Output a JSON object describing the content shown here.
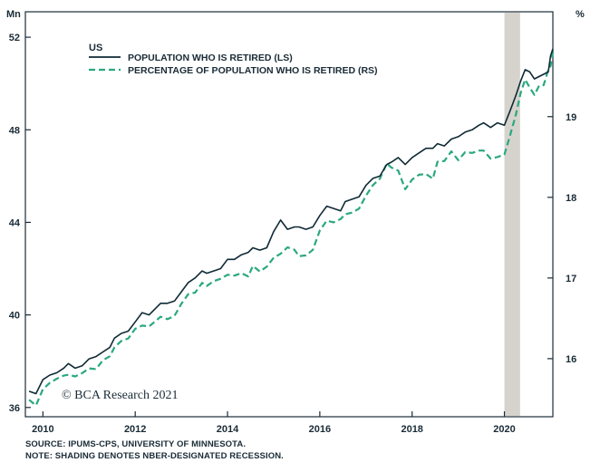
{
  "chart_data": {
    "type": "line",
    "title": "",
    "region_label": "US",
    "x_range": [
      2009.62,
      2021.05
    ],
    "x_ticks": [
      2010,
      2012,
      2014,
      2016,
      2018,
      2020
    ],
    "x_tick_labels": [
      "2010",
      "2012",
      "2014",
      "2016",
      "2018",
      "2020"
    ],
    "left_axis": {
      "unit": "Mn",
      "range": [
        35.6,
        53.1
      ],
      "ticks": [
        36,
        40,
        44,
        48,
        52
      ],
      "tick_labels": [
        "36",
        "40",
        "44",
        "48",
        "52"
      ]
    },
    "right_axis": {
      "unit": "%",
      "range": [
        15.28,
        20.3
      ],
      "ticks": [
        16,
        17,
        18,
        19
      ],
      "tick_labels": [
        "16",
        "17",
        "18",
        "19"
      ]
    },
    "shading": [
      {
        "label": "NBER recession",
        "start": 2020.0,
        "end": 2020.34
      }
    ],
    "series": [
      {
        "name": "POPULATION WHO IS RETIRED (LS)",
        "axis": "left",
        "style": "solid",
        "color": "#0f2a36",
        "points": [
          [
            2009.7,
            36.7
          ],
          [
            2009.85,
            36.6
          ],
          [
            2010.0,
            37.2
          ],
          [
            2010.15,
            37.4
          ],
          [
            2010.3,
            37.5
          ],
          [
            2010.45,
            37.7
          ],
          [
            2010.55,
            37.9
          ],
          [
            2010.7,
            37.7
          ],
          [
            2010.85,
            37.8
          ],
          [
            2011.0,
            38.1
          ],
          [
            2011.15,
            38.2
          ],
          [
            2011.3,
            38.4
          ],
          [
            2011.45,
            38.6
          ],
          [
            2011.55,
            39.0
          ],
          [
            2011.7,
            39.2
          ],
          [
            2011.85,
            39.3
          ],
          [
            2012.0,
            39.7
          ],
          [
            2012.15,
            40.1
          ],
          [
            2012.3,
            40.0
          ],
          [
            2012.45,
            40.3
          ],
          [
            2012.55,
            40.5
          ],
          [
            2012.7,
            40.5
          ],
          [
            2012.85,
            40.6
          ],
          [
            2013.0,
            41.0
          ],
          [
            2013.15,
            41.4
          ],
          [
            2013.3,
            41.6
          ],
          [
            2013.45,
            41.9
          ],
          [
            2013.55,
            41.8
          ],
          [
            2013.7,
            41.9
          ],
          [
            2013.85,
            42.0
          ],
          [
            2014.0,
            42.4
          ],
          [
            2014.15,
            42.4
          ],
          [
            2014.3,
            42.6
          ],
          [
            2014.45,
            42.7
          ],
          [
            2014.55,
            42.9
          ],
          [
            2014.7,
            42.8
          ],
          [
            2014.85,
            42.9
          ],
          [
            2015.0,
            43.6
          ],
          [
            2015.15,
            44.1
          ],
          [
            2015.3,
            43.7
          ],
          [
            2015.45,
            43.8
          ],
          [
            2015.55,
            43.8
          ],
          [
            2015.7,
            43.7
          ],
          [
            2015.85,
            43.8
          ],
          [
            2016.0,
            44.3
          ],
          [
            2016.15,
            44.7
          ],
          [
            2016.3,
            44.6
          ],
          [
            2016.45,
            44.5
          ],
          [
            2016.55,
            44.9
          ],
          [
            2016.7,
            45.0
          ],
          [
            2016.85,
            45.1
          ],
          [
            2017.0,
            45.6
          ],
          [
            2017.15,
            45.9
          ],
          [
            2017.3,
            46.0
          ],
          [
            2017.45,
            46.5
          ],
          [
            2017.55,
            46.6
          ],
          [
            2017.7,
            46.8
          ],
          [
            2017.85,
            46.5
          ],
          [
            2018.0,
            46.8
          ],
          [
            2018.15,
            47.0
          ],
          [
            2018.3,
            47.2
          ],
          [
            2018.45,
            47.2
          ],
          [
            2018.55,
            47.4
          ],
          [
            2018.7,
            47.3
          ],
          [
            2018.85,
            47.6
          ],
          [
            2019.0,
            47.7
          ],
          [
            2019.15,
            47.9
          ],
          [
            2019.3,
            48.0
          ],
          [
            2019.45,
            48.2
          ],
          [
            2019.55,
            48.3
          ],
          [
            2019.7,
            48.1
          ],
          [
            2019.85,
            48.3
          ],
          [
            2020.0,
            48.2
          ],
          [
            2020.12,
            48.8
          ],
          [
            2020.25,
            49.5
          ],
          [
            2020.35,
            50.1
          ],
          [
            2020.45,
            50.6
          ],
          [
            2020.55,
            50.5
          ],
          [
            2020.65,
            50.2
          ],
          [
            2020.75,
            50.3
          ],
          [
            2020.85,
            50.4
          ],
          [
            2020.95,
            50.5
          ],
          [
            2021.0,
            51.2
          ],
          [
            2021.05,
            51.5
          ]
        ]
      },
      {
        "name": "PERCENTAGE OF POPULATION WHO IS RETIRED (RS)",
        "axis": "right",
        "style": "dashed",
        "color": "#2aa880",
        "points": [
          [
            2009.7,
            15.49
          ],
          [
            2009.85,
            15.42
          ],
          [
            2010.0,
            15.62
          ],
          [
            2010.15,
            15.7
          ],
          [
            2010.3,
            15.75
          ],
          [
            2010.45,
            15.79
          ],
          [
            2010.55,
            15.8
          ],
          [
            2010.7,
            15.78
          ],
          [
            2010.85,
            15.82
          ],
          [
            2011.0,
            15.88
          ],
          [
            2011.15,
            15.87
          ],
          [
            2011.3,
            15.98
          ],
          [
            2011.45,
            16.03
          ],
          [
            2011.55,
            16.14
          ],
          [
            2011.7,
            16.22
          ],
          [
            2011.85,
            16.25
          ],
          [
            2012.0,
            16.37
          ],
          [
            2012.15,
            16.41
          ],
          [
            2012.3,
            16.4
          ],
          [
            2012.45,
            16.47
          ],
          [
            2012.55,
            16.52
          ],
          [
            2012.7,
            16.49
          ],
          [
            2012.85,
            16.53
          ],
          [
            2013.0,
            16.68
          ],
          [
            2013.15,
            16.8
          ],
          [
            2013.3,
            16.82
          ],
          [
            2013.45,
            16.94
          ],
          [
            2013.55,
            16.9
          ],
          [
            2013.7,
            16.96
          ],
          [
            2013.85,
            16.99
          ],
          [
            2014.0,
            17.04
          ],
          [
            2014.15,
            17.03
          ],
          [
            2014.3,
            17.06
          ],
          [
            2014.45,
            17.02
          ],
          [
            2014.55,
            17.15
          ],
          [
            2014.7,
            17.08
          ],
          [
            2014.85,
            17.14
          ],
          [
            2015.0,
            17.25
          ],
          [
            2015.15,
            17.3
          ],
          [
            2015.3,
            17.38
          ],
          [
            2015.45,
            17.35
          ],
          [
            2015.55,
            17.27
          ],
          [
            2015.7,
            17.28
          ],
          [
            2015.85,
            17.35
          ],
          [
            2016.0,
            17.59
          ],
          [
            2016.15,
            17.71
          ],
          [
            2016.3,
            17.69
          ],
          [
            2016.45,
            17.73
          ],
          [
            2016.55,
            17.79
          ],
          [
            2016.7,
            17.81
          ],
          [
            2016.85,
            17.86
          ],
          [
            2017.0,
            18.02
          ],
          [
            2017.15,
            18.15
          ],
          [
            2017.3,
            18.23
          ],
          [
            2017.45,
            18.42
          ],
          [
            2017.55,
            18.37
          ],
          [
            2017.7,
            18.33
          ],
          [
            2017.85,
            18.1
          ],
          [
            2018.0,
            18.22
          ],
          [
            2018.15,
            18.28
          ],
          [
            2018.3,
            18.29
          ],
          [
            2018.45,
            18.23
          ],
          [
            2018.55,
            18.44
          ],
          [
            2018.7,
            18.45
          ],
          [
            2018.85,
            18.57
          ],
          [
            2019.0,
            18.46
          ],
          [
            2019.15,
            18.56
          ],
          [
            2019.3,
            18.55
          ],
          [
            2019.45,
            18.58
          ],
          [
            2019.55,
            18.58
          ],
          [
            2019.7,
            18.48
          ],
          [
            2019.85,
            18.5
          ],
          [
            2020.0,
            18.53
          ],
          [
            2020.12,
            18.76
          ],
          [
            2020.25,
            19.03
          ],
          [
            2020.35,
            19.29
          ],
          [
            2020.45,
            19.46
          ],
          [
            2020.55,
            19.36
          ],
          [
            2020.65,
            19.27
          ],
          [
            2020.75,
            19.38
          ],
          [
            2020.85,
            19.39
          ],
          [
            2020.95,
            19.58
          ],
          [
            2021.0,
            19.63
          ],
          [
            2021.05,
            19.8
          ]
        ]
      }
    ]
  },
  "footer": {
    "watermark": "© BCA Research 2021",
    "source": "SOURCE: IPUMS-CPS, UNIVERSITY OF MINNESOTA.",
    "note": "NOTE: SHADING DENOTES NBER-DESIGNATED RECESSION."
  },
  "colors": {
    "axis": "#1a2b36",
    "shading": "#d6d3cd"
  }
}
